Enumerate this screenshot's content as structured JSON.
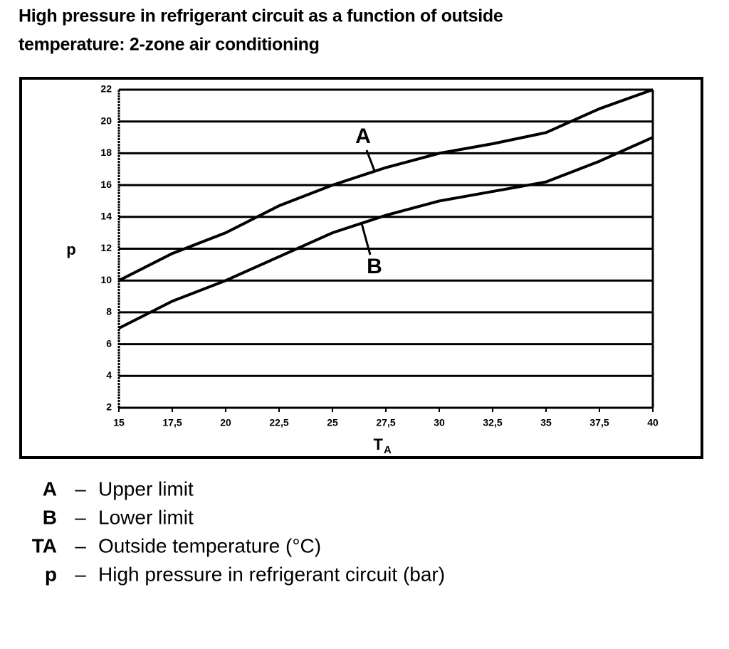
{
  "chart_data": {
    "type": "line",
    "title_lines": [
      "High pressure in refrigerant circuit as a function of outside",
      "temperature: 2-zone air conditioning"
    ],
    "ylabel": "p",
    "xlabel": {
      "main": "T",
      "sub": "A"
    },
    "x": [
      15,
      17.5,
      20,
      22.5,
      25,
      27.5,
      30,
      32.5,
      35,
      37.5,
      40
    ],
    "series": [
      {
        "name": "A",
        "color": "#000000",
        "values": [
          10,
          11.7,
          13,
          14.7,
          16,
          17.1,
          18,
          18.6,
          19.3,
          20.8,
          22
        ]
      },
      {
        "name": "B",
        "color": "#000000",
        "values": [
          7,
          8.7,
          10,
          11.5,
          13,
          14.1,
          15,
          15.6,
          16.2,
          17.5,
          19
        ]
      }
    ],
    "xlim": [
      15,
      40
    ],
    "xticks": [
      15,
      {
        "value": 17.5,
        "label": "17,5"
      },
      20,
      {
        "value": 22.5,
        "label": "22,5"
      },
      25,
      {
        "value": 27.5,
        "label": "27,5"
      },
      30,
      {
        "value": 32.5,
        "label": "32,5"
      },
      35,
      {
        "value": 37.5,
        "label": "37,5"
      },
      40
    ],
    "ylim": [
      2,
      22
    ],
    "yticks": [
      2,
      4,
      6,
      8,
      10,
      12,
      14,
      16,
      18,
      20,
      22
    ],
    "grid": true,
    "separator": "–",
    "notes": [
      {
        "key": "A",
        "text": "Upper limit"
      },
      {
        "key": "B",
        "text": "Lower limit"
      },
      {
        "key": "TA",
        "text": "Outside temperature (°C)"
      },
      {
        "key": "p",
        "text": "High pressure in refrigerant circuit (bar)"
      }
    ]
  }
}
